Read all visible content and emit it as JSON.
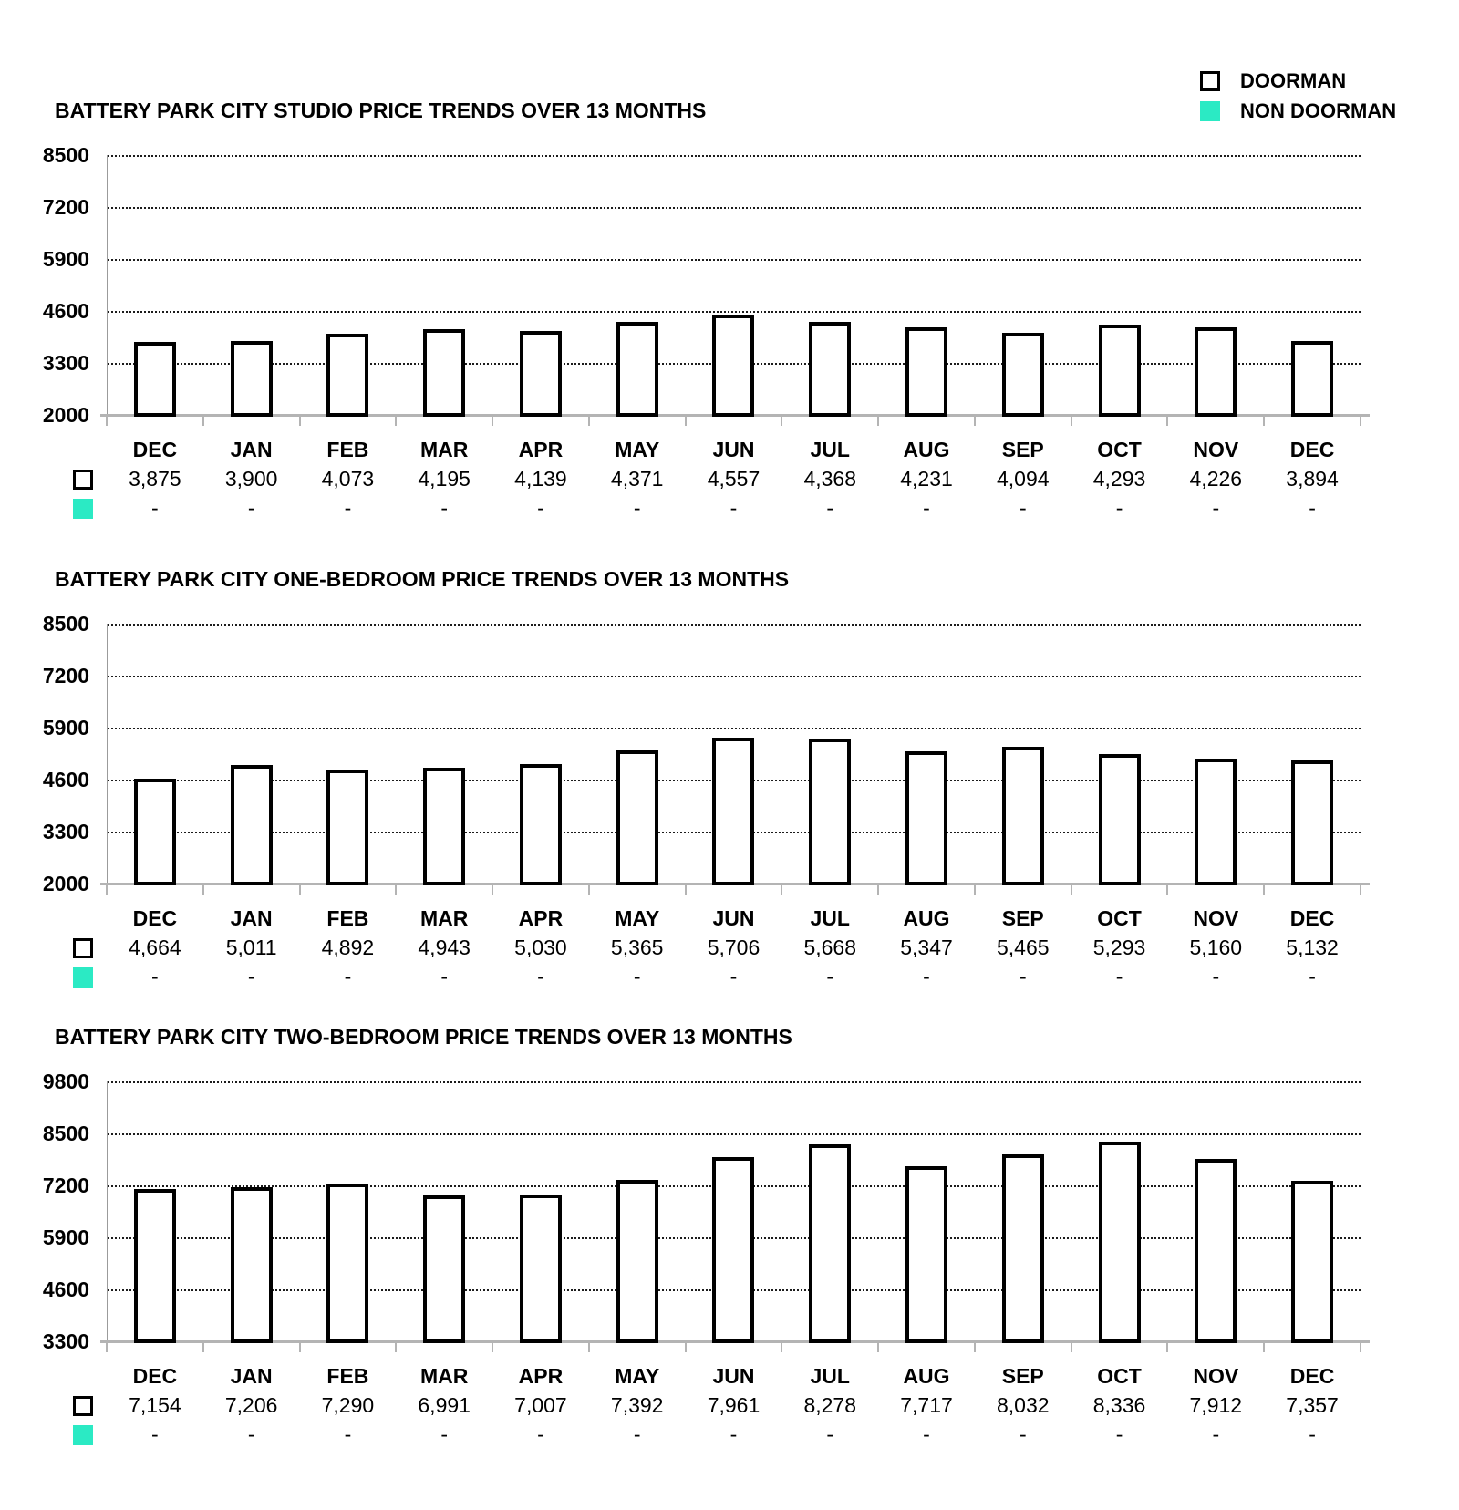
{
  "legend": {
    "items": [
      {
        "label": "DOORMAN"
      },
      {
        "label": "NON DOORMAN"
      }
    ]
  },
  "colors": {
    "non_doorman": "#2BEAC4",
    "doorman_fill": "#FFFFFF",
    "bar_border": "#000000",
    "axis_gray": "#B4B4B4"
  },
  "months": [
    "DEC",
    "JAN",
    "FEB",
    "MAR",
    "APR",
    "MAY",
    "JUN",
    "JUL",
    "AUG",
    "SEP",
    "OCT",
    "NOV",
    "DEC"
  ],
  "chart_data": [
    {
      "type": "bar",
      "title": "BATTERY PARK CITY STUDIO PRICE TRENDS OVER 13 MONTHS",
      "categories": [
        "DEC",
        "JAN",
        "FEB",
        "MAR",
        "APR",
        "MAY",
        "JUN",
        "JUL",
        "AUG",
        "SEP",
        "OCT",
        "NOV",
        "DEC"
      ],
      "series": [
        {
          "name": "DOORMAN",
          "values": [
            3875,
            3900,
            4073,
            4195,
            4139,
            4371,
            4557,
            4368,
            4231,
            4094,
            4293,
            4226,
            3894
          ]
        },
        {
          "name": "NON DOORMAN",
          "values": [
            null,
            null,
            null,
            null,
            null,
            null,
            null,
            null,
            null,
            null,
            null,
            null,
            null
          ]
        }
      ],
      "value_labels": [
        "3,875",
        "3,900",
        "4,073",
        "4,195",
        "4,139",
        "4,371",
        "4,557",
        "4,368",
        "4,231",
        "4,094",
        "4,293",
        "4,226",
        "3,894"
      ],
      "non_doorman_labels": [
        "-",
        "-",
        "-",
        "-",
        "-",
        "-",
        "-",
        "-",
        "-",
        "-",
        "-",
        "-",
        "-"
      ],
      "yticks": [
        8500,
        7200,
        5900,
        4600,
        3300,
        2000
      ],
      "ytick_labels": [
        "8500",
        "7200",
        "5900",
        "4600",
        "3300",
        "2000"
      ],
      "ylim": [
        2000,
        8500
      ],
      "grid": "dotted-horizontal",
      "legend_position": "top-right"
    },
    {
      "type": "bar",
      "title": "BATTERY PARK CITY ONE-BEDROOM PRICE TRENDS OVER 13 MONTHS",
      "categories": [
        "DEC",
        "JAN",
        "FEB",
        "MAR",
        "APR",
        "MAY",
        "JUN",
        "JUL",
        "AUG",
        "SEP",
        "OCT",
        "NOV",
        "DEC"
      ],
      "series": [
        {
          "name": "DOORMAN",
          "values": [
            4664,
            5011,
            4892,
            4943,
            5030,
            5365,
            5706,
            5668,
            5347,
            5465,
            5293,
            5160,
            5132
          ]
        },
        {
          "name": "NON DOORMAN",
          "values": [
            null,
            null,
            null,
            null,
            null,
            null,
            null,
            null,
            null,
            null,
            null,
            null,
            null
          ]
        }
      ],
      "value_labels": [
        "4,664",
        "5,011",
        "4,892",
        "4,943",
        "5,030",
        "5,365",
        "5,706",
        "5,668",
        "5,347",
        "5,465",
        "5,293",
        "5,160",
        "5,132"
      ],
      "non_doorman_labels": [
        "-",
        "-",
        "-",
        "-",
        "-",
        "-",
        "-",
        "-",
        "-",
        "-",
        "-",
        "-",
        "-"
      ],
      "yticks": [
        8500,
        7200,
        5900,
        4600,
        3300,
        2000
      ],
      "ytick_labels": [
        "8500",
        "7200",
        "5900",
        "4600",
        "3300",
        "2000"
      ],
      "ylim": [
        2000,
        8500
      ],
      "grid": "dotted-horizontal",
      "legend_position": "top-right"
    },
    {
      "type": "bar",
      "title": "BATTERY PARK CITY TWO-BEDROOM PRICE TRENDS OVER 13 MONTHS",
      "categories": [
        "DEC",
        "JAN",
        "FEB",
        "MAR",
        "APR",
        "MAY",
        "JUN",
        "JUL",
        "AUG",
        "SEP",
        "OCT",
        "NOV",
        "DEC"
      ],
      "series": [
        {
          "name": "DOORMAN",
          "values": [
            7154,
            7206,
            7290,
            6991,
            7007,
            7392,
            7961,
            8278,
            7717,
            8032,
            8336,
            7912,
            7357
          ]
        },
        {
          "name": "NON DOORMAN",
          "values": [
            null,
            null,
            null,
            null,
            null,
            null,
            null,
            null,
            null,
            null,
            null,
            null,
            null
          ]
        }
      ],
      "value_labels": [
        "7,154",
        "7,206",
        "7,290",
        "6,991",
        "7,007",
        "7,392",
        "7,961",
        "8,278",
        "7,717",
        "8,032",
        "8,336",
        "7,912",
        "7,357"
      ],
      "non_doorman_labels": [
        "-",
        "-",
        "-",
        "-",
        "-",
        "-",
        "-",
        "-",
        "-",
        "-",
        "-",
        "-",
        "-"
      ],
      "yticks": [
        9800,
        8500,
        7200,
        5900,
        4600,
        3300
      ],
      "ytick_labels": [
        "9800",
        "8500",
        "7200",
        "5900",
        "4600",
        "3300"
      ],
      "ylim": [
        3300,
        9800
      ],
      "grid": "dotted-horizontal",
      "legend_position": "top-right"
    }
  ]
}
